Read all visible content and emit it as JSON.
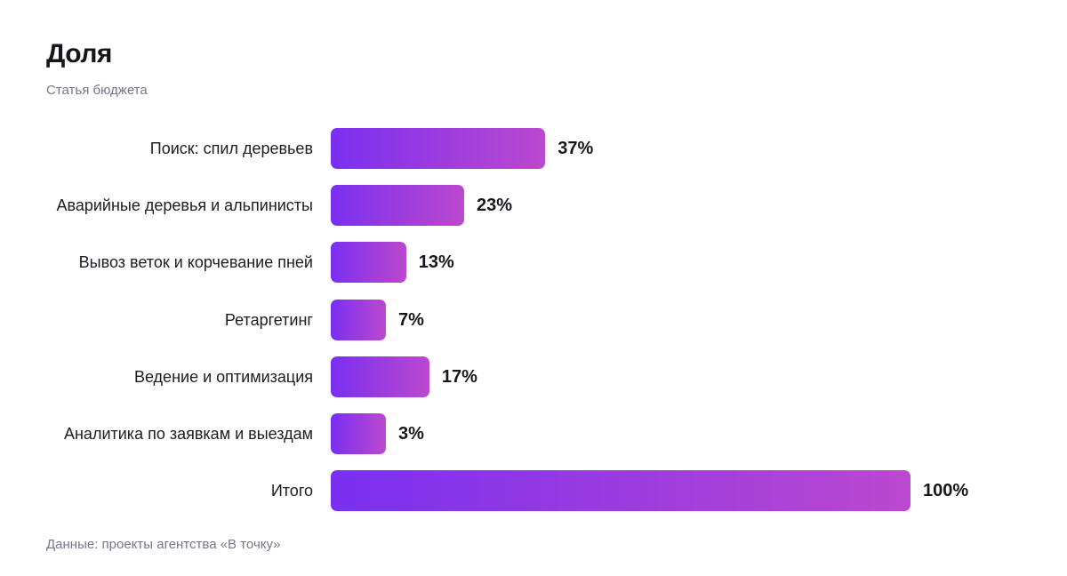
{
  "header": {
    "title": "Доля",
    "subtitle": "Статья бюджета"
  },
  "footer": {
    "source": "Данные: проекты агентства «В точку»"
  },
  "colors": {
    "bar_gradient_start": "#7a2ff0",
    "bar_gradient_end": "#bb48cf"
  },
  "chart_data": {
    "type": "bar",
    "orientation": "horizontal",
    "title": "Доля",
    "subtitle": "Статья бюджета",
    "categories": [
      "Поиск: спил деревьев",
      "Аварийные деревья и альпинисты",
      "Вывоз веток и корчевание пней",
      "Ретаргетинг",
      "Ведение и оптимизация",
      "Аналитика по заявкам и выездам",
      "Итого"
    ],
    "values": [
      37,
      23,
      13,
      7,
      17,
      3,
      100
    ],
    "value_labels": [
      "37%",
      "23%",
      "13%",
      "7%",
      "17%",
      "3%",
      "100%"
    ],
    "unit": "%",
    "xlim": [
      0,
      100
    ],
    "grid": false,
    "legend": "none"
  }
}
